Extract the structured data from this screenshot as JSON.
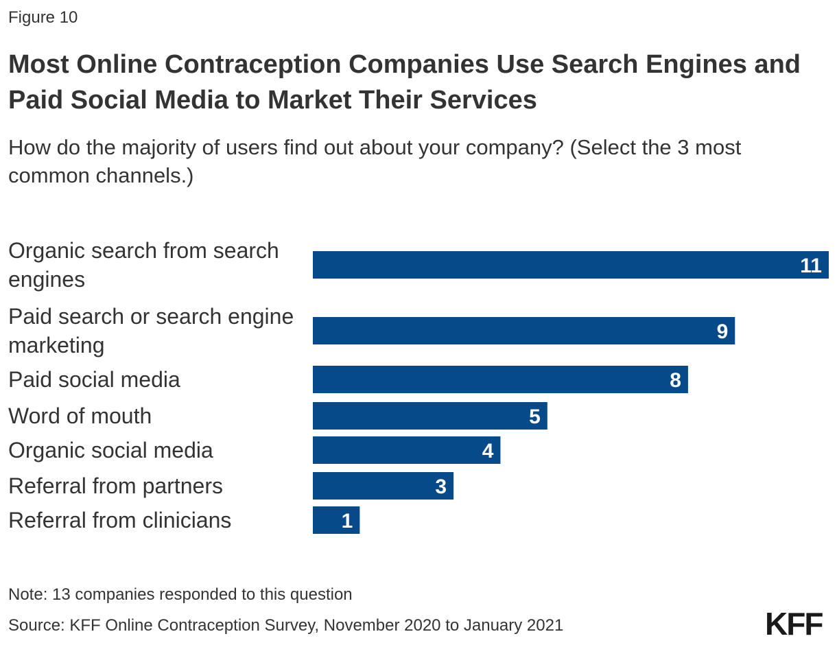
{
  "figure_label": "Figure 10",
  "title": "Most Online Contraception Companies Use Search Engines and Paid Social Media to Market Their Services",
  "subtitle": "How do the majority of users find out about your company? (Select the 3 most common channels.)",
  "note": "Note: 13 companies responded to this question",
  "source": "Source: KFF Online Contraception Survey, November 2020 to January 2021",
  "logo": "KFF",
  "colors": {
    "bar": "#064a8a",
    "bar_label": "#ffffff",
    "text": "#333333"
  },
  "chart_data": {
    "type": "bar",
    "orientation": "horizontal",
    "categories": [
      [
        "Organic search from search",
        "engines"
      ],
      [
        "Paid search or search engine",
        "marketing"
      ],
      [
        "Paid social media"
      ],
      [
        "Word of mouth"
      ],
      [
        "Organic social media"
      ],
      [
        "Referral from partners"
      ],
      [
        "Referral from clinicians"
      ]
    ],
    "values": [
      11,
      9,
      8,
      5,
      4,
      3,
      1
    ],
    "xlim": [
      0,
      11
    ],
    "data_labels": true,
    "grid": false,
    "legend": "none"
  }
}
